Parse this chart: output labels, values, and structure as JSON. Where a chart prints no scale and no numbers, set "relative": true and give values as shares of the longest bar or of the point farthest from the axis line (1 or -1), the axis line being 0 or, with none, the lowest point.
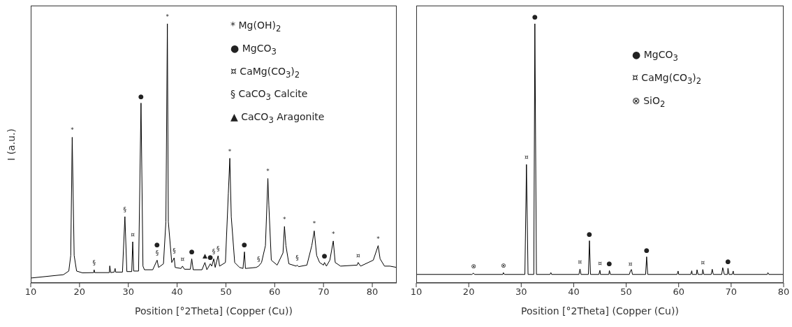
{
  "chart_data": [
    {
      "type": "line",
      "xlabel": "Position [°2Theta] (Copper (Cu))",
      "ylabel": "I (a.u.)",
      "relative": true,
      "tick_labels": "x",
      "color": "#000000",
      "xlim": [
        10,
        85
      ],
      "xticks": [
        10,
        20,
        30,
        40,
        50,
        60,
        70,
        80
      ],
      "x": [
        10,
        16.7,
        17.8,
        18.2,
        18.5,
        18.9,
        19.4,
        20.6,
        22.9,
        23.0,
        23.1,
        26.1,
        26.2,
        26.4,
        27.1,
        27.3,
        27.4,
        28.8,
        29.3,
        29.7,
        30.7,
        30.9,
        31.1,
        32.1,
        32.6,
        33.0,
        33.3,
        35.0,
        35.9,
        36.2,
        37.2,
        37.7,
        38.0,
        38.2,
        38.9,
        39.4,
        39.6,
        40.8,
        41.1,
        41.5,
        42.7,
        43.0,
        43.3,
        45.1,
        45.7,
        46.1,
        46.8,
        47.1,
        47.5,
        47.8,
        48.4,
        48.7,
        49.9,
        50.5,
        50.8,
        51.1,
        51.8,
        52.8,
        53.5,
        53.8,
        54.0,
        56.2,
        56.7,
        57.3,
        58.1,
        58.6,
        58.8,
        59.3,
        60.5,
        61.7,
        62.0,
        62.3,
        62.9,
        64.4,
        64.6,
        64.9,
        66.6,
        67.6,
        68.1,
        68.6,
        69.2,
        70.0,
        70.2,
        70.6,
        71.3,
        72.0,
        72.4,
        73.5,
        76.9,
        77.1,
        77.6,
        80.2,
        81.2,
        81.6,
        82.5,
        83.6,
        85
      ],
      "values": [
        0.019,
        0.032,
        0.046,
        0.106,
        0.562,
        0.106,
        0.046,
        0.039,
        0.04,
        0.051,
        0.04,
        0.04,
        0.066,
        0.04,
        0.042,
        0.056,
        0.042,
        0.042,
        0.256,
        0.044,
        0.044,
        0.159,
        0.046,
        0.046,
        0.694,
        0.065,
        0.051,
        0.051,
        0.088,
        0.06,
        0.074,
        0.236,
        1.0,
        0.236,
        0.079,
        0.097,
        0.06,
        0.056,
        0.065,
        0.053,
        0.053,
        0.093,
        0.051,
        0.051,
        0.079,
        0.051,
        0.074,
        0.065,
        0.093,
        0.06,
        0.105,
        0.065,
        0.079,
        0.347,
        0.481,
        0.255,
        0.079,
        0.06,
        0.056,
        0.12,
        0.056,
        0.06,
        0.065,
        0.079,
        0.144,
        0.403,
        0.301,
        0.088,
        0.069,
        0.116,
        0.218,
        0.144,
        0.074,
        0.065,
        0.069,
        0.063,
        0.069,
        0.144,
        0.201,
        0.106,
        0.079,
        0.069,
        0.079,
        0.065,
        0.088,
        0.162,
        0.079,
        0.065,
        0.069,
        0.079,
        0.065,
        0.088,
        0.144,
        0.093,
        0.065,
        0.065,
        0.06
      ],
      "annotations": [
        "* Mg(OH)$_{2}$",
        "● MgCO$_{3}$",
        "¤ CaMg(CO$_{3}$)$_{2}$",
        "§ CaCO$_{3}$ Calcite",
        "▲ CaCO$_{3}$ Aragonite",
        {
          "text": "*",
          "x": 18.5,
          "y": 0.562
        },
        {
          "text": "§",
          "x": 23.0,
          "y": 0.051
        },
        {
          "text": "§",
          "x": 29.3,
          "y": 0.256
        },
        {
          "text": "¤",
          "x": 30.9,
          "y": 0.159
        },
        {
          "text": "●",
          "x": 32.6,
          "y": 0.694
        },
        {
          "text": "*",
          "x": 38.0,
          "y": 1.0
        },
        {
          "text": "§",
          "x": 35.9,
          "y": 0.088
        },
        {
          "text": "●",
          "x": 35.9,
          "y": 0.088
        },
        {
          "text": "§",
          "x": 39.4,
          "y": 0.097
        },
        {
          "text": "¤",
          "x": 41.1,
          "y": 0.065
        },
        {
          "text": "●",
          "x": 43.0,
          "y": 0.093
        },
        {
          "text": "▲",
          "x": 45.7,
          "y": 0.079
        },
        {
          "text": "●",
          "x": 46.8,
          "y": 0.074
        },
        {
          "text": "§",
          "x": 47.5,
          "y": 0.093
        },
        {
          "text": "§",
          "x": 48.4,
          "y": 0.105
        },
        {
          "text": "*",
          "x": 50.8,
          "y": 0.481
        },
        {
          "text": "●",
          "x": 53.8,
          "y": 0.12
        },
        {
          "text": "§",
          "x": 56.7,
          "y": 0.065
        },
        {
          "text": "*",
          "x": 58.6,
          "y": 0.403
        },
        {
          "text": "*",
          "x": 62.0,
          "y": 0.218
        },
        {
          "text": "§",
          "x": 64.6,
          "y": 0.069
        },
        {
          "text": "*",
          "x": 68.1,
          "y": 0.201
        },
        {
          "text": "●",
          "x": 70.2,
          "y": 0.079
        },
        {
          "text": "*",
          "x": 72.0,
          "y": 0.162
        },
        {
          "text": "¤",
          "x": 77.1,
          "y": 0.079
        },
        {
          "text": "*",
          "x": 81.2,
          "y": 0.144
        }
      ]
    },
    {
      "type": "line",
      "xlabel": "Position [°2Theta] (Copper (Cu))",
      "relative": true,
      "tick_labels": "x",
      "color": "#000000",
      "xlim": [
        10,
        80
      ],
      "xticks": [
        10,
        20,
        30,
        40,
        50,
        60,
        70,
        80
      ],
      "x": [
        10,
        20.6,
        20.9,
        21.1,
        26.5,
        26.6,
        26.8,
        30.7,
        31.0,
        31.3,
        32.4,
        32.6,
        32.9,
        35.5,
        35.65,
        35.8,
        41.0,
        41.2,
        41.4,
        42.8,
        43.0,
        43.2,
        44.8,
        45.0,
        45.1,
        46.7,
        46.8,
        47.0,
        50.6,
        50.8,
        51.0,
        51.2,
        53.7,
        53.9,
        54.1,
        59.7,
        59.9,
        60.0,
        62.3,
        62.5,
        62.6,
        63.4,
        63.5,
        63.7,
        64.5,
        64.6,
        64.8,
        66.2,
        66.4,
        66.6,
        68.2,
        68.4,
        68.7,
        69.3,
        69.4,
        69.6,
        70.2,
        70.4,
        70.5,
        76.9,
        77.0,
        77.2,
        80
      ],
      "values": [
        0.033,
        0.033,
        0.038,
        0.033,
        0.033,
        0.04,
        0.033,
        0.033,
        0.457,
        0.033,
        0.033,
        1.0,
        0.033,
        0.033,
        0.04,
        0.033,
        0.033,
        0.054,
        0.033,
        0.033,
        0.163,
        0.033,
        0.033,
        0.049,
        0.033,
        0.033,
        0.048,
        0.033,
        0.033,
        0.046,
        0.052,
        0.033,
        0.033,
        0.101,
        0.033,
        0.033,
        0.046,
        0.033,
        0.033,
        0.047,
        0.033,
        0.033,
        0.051,
        0.033,
        0.033,
        0.052,
        0.033,
        0.033,
        0.053,
        0.033,
        0.033,
        0.059,
        0.033,
        0.033,
        0.057,
        0.033,
        0.033,
        0.046,
        0.033,
        0.033,
        0.04,
        0.033,
        0.033
      ],
      "annotations": [
        "● MgCO$_{3}$",
        "¤ CaMg(CO$_{3}$)$_{2}$",
        "⊗ SiO$_{2}$",
        {
          "text": "●",
          "x": 32.6,
          "y": 1.0
        },
        {
          "text": "¤",
          "x": 31.0,
          "y": 0.457
        },
        {
          "text": "⊗",
          "x": 20.9,
          "y": 0.038
        },
        {
          "text": "⊗",
          "x": 26.6,
          "y": 0.04
        },
        {
          "text": "¤",
          "x": 41.2,
          "y": 0.054
        },
        {
          "text": "●",
          "x": 43.0,
          "y": 0.163
        },
        {
          "text": "¤",
          "x": 45.0,
          "y": 0.049
        },
        {
          "text": "●",
          "x": 46.8,
          "y": 0.048
        },
        {
          "text": "¤",
          "x": 50.8,
          "y": 0.046
        },
        {
          "text": "●",
          "x": 53.9,
          "y": 0.101
        },
        {
          "text": "¤",
          "x": 64.6,
          "y": 0.052
        },
        {
          "text": "●",
          "x": 69.4,
          "y": 0.057
        }
      ]
    }
  ]
}
